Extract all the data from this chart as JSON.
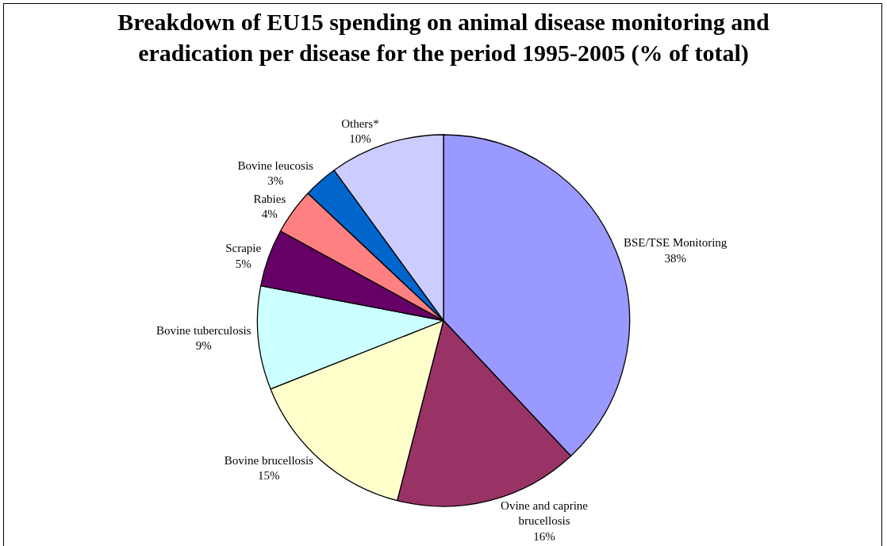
{
  "chart_data": {
    "type": "pie",
    "title": "Breakdown of EU15 spending on animal disease monitoring and eradication per disease for the period 1995-2005 (% of total)",
    "categories": [
      "BSE/TSE Monitoring",
      "Ovine and caprine brucellosis",
      "Bovine brucellosis",
      "Bovine tuberculosis",
      "Scrapie",
      "Rabies",
      "Bovine leucosis",
      "Others*"
    ],
    "values": [
      38,
      16,
      15,
      9,
      5,
      4,
      3,
      10
    ],
    "value_labels": [
      "38%",
      "16%",
      "15%",
      "9%",
      "5%",
      "4%",
      "3%",
      "10%"
    ],
    "colors": [
      "#9999ff",
      "#993366",
      "#ffffcc",
      "#ccffff",
      "#660066",
      "#ff8080",
      "#0066cc",
      "#ccccff"
    ],
    "legend": false
  }
}
